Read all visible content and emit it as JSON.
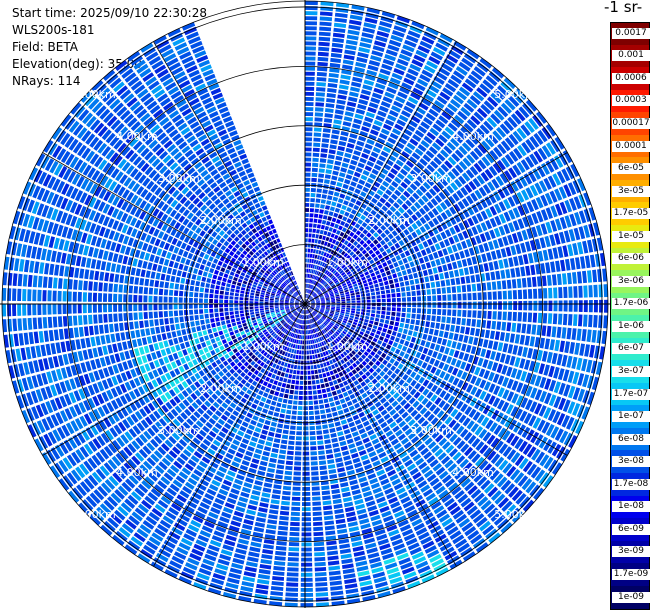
{
  "info": {
    "start_time": "Start time: 2025/09/10 22:30:28",
    "instrument": "WLS200s-181",
    "field": "Field: BETA",
    "elevation": "Elevation(deg): 35.00",
    "nrays": "NRays: 114"
  },
  "colorbar": {
    "title": "-1 sr-",
    "labels": [
      "0.0017",
      "0.001",
      "0.0006",
      "0.0003",
      "0.00017",
      "0.0001",
      "6e-05",
      "3e-05",
      "1.7e-05",
      "1e-05",
      "6e-06",
      "3e-06",
      "1.7e-06",
      "1e-06",
      "6e-07",
      "3e-07",
      "1.7e-07",
      "1e-07",
      "6e-08",
      "3e-08",
      "1.7e-08",
      "1e-08",
      "6e-09",
      "3e-09",
      "1.7e-09",
      "1e-09"
    ],
    "colors": [
      "#7f0000",
      "#a50000",
      "#cc0000",
      "#ff1a00",
      "#ff4400",
      "#ff6e00",
      "#ff9000",
      "#ffae00",
      "#ffcc00",
      "#e8ea10",
      "#c0f238",
      "#98f55e",
      "#70f585",
      "#4cf2ab",
      "#30eccd",
      "#18deeb",
      "#08c8f5",
      "#009ef8",
      "#0078f0",
      "#0050e8",
      "#0028e0",
      "#0000ee",
      "#0000cc",
      "#0000a8",
      "#000084",
      "#000064"
    ]
  },
  "chart_data": {
    "type": "heatmap",
    "title": "",
    "field": "BETA",
    "elevation_deg": 35.0,
    "nrays": 114,
    "range_rings": [
      "1.00km",
      "2.00km",
      "3.00km",
      "4.00km",
      "5.00km"
    ],
    "range_rings_km": [
      1,
      2,
      3,
      4,
      5
    ],
    "max_range_km": 5.1,
    "missing_sector_deg": [
      339,
      360
    ],
    "dominant_values_sr-1": {
      "typical": "3e-08 to 6e-08",
      "min": "1e-09",
      "max": "1e-07"
    },
    "enhanced_regions": [
      {
        "azimuth_deg": 245,
        "range_km": "0.3-3",
        "level": "1e-07 to 3e-07"
      },
      {
        "azimuth_deg": 160,
        "range_km": "4.5-5.1",
        "level": "1e-07 to 1.7e-06"
      }
    ],
    "grid": true
  }
}
